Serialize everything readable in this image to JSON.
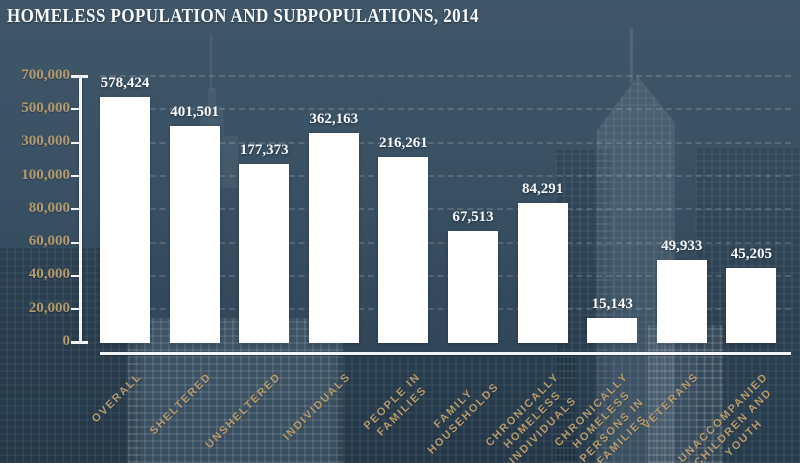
{
  "title": "HOMELESS POPULATION AND SUBPOPULATIONS, 2014",
  "colors": {
    "background_top": "#3f5669",
    "background_bottom": "#2c4153",
    "bar": "#ffffff",
    "axis": "#f2f5f7",
    "y_tick_label": "#b49a6c",
    "x_tick_label": "#b79c6d",
    "value_label": "#fafbfc",
    "gridline": "rgba(255,255,255,0.15)"
  },
  "chart_data": {
    "type": "bar",
    "title": "HOMELESS POPULATION AND SUBPOPULATIONS, 2014",
    "categories": [
      "OVERALL",
      "SHELTERED",
      "UNSHELTERED",
      "INDIVIDUALS",
      "PEOPLE IN\nFAMILIES",
      "FAMILY\nHOUSEHOLDS",
      "CHRONICALLY\nHOMELESS\nINDIVIDUALS",
      "CHRONICALLY\nHOMELESS\nPERSONS IN\nFAMILIES",
      "VETERANS",
      "UNACCOMPANIED\nCHILDREN AND\nYOUTH"
    ],
    "values": [
      578424,
      401501,
      177373,
      362163,
      216261,
      67513,
      84291,
      15143,
      49933,
      45205
    ],
    "value_labels": [
      "578,424",
      "401,501",
      "177,373",
      "362,163",
      "216,261",
      "67,513",
      "84,291",
      "15,143",
      "49,933",
      "45,205"
    ],
    "xlabel": "",
    "ylabel": "",
    "y_axis": {
      "ticks": [
        0,
        20000,
        40000,
        60000,
        80000,
        100000,
        300000,
        500000,
        700000
      ],
      "tick_labels": [
        "0",
        "20,000",
        "40,000",
        "60,000",
        "80,000",
        "100,000",
        "300,000",
        "500,000",
        "700,000"
      ],
      "range": [
        0,
        700000
      ],
      "scale": "piecewise-linear broken axis: equal tick spacing, 20,000 steps below 100,000 and 200,000 steps above"
    },
    "grid": "dashed horizontal line at every y tick",
    "legend": null,
    "bar_color": "#ffffff",
    "label_rotation_deg": -45
  }
}
